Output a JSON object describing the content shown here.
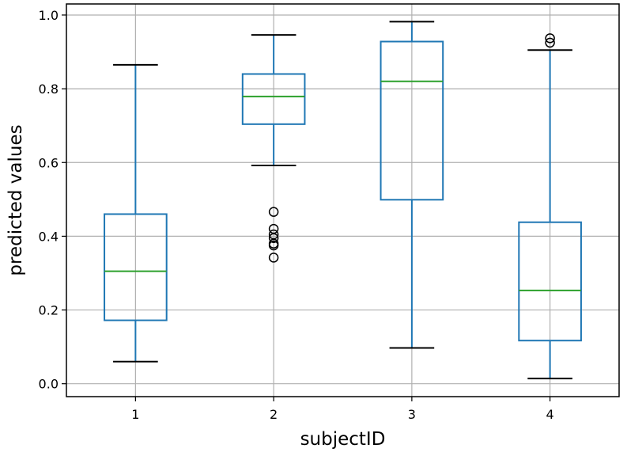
{
  "chart_data": {
    "type": "box",
    "xlabel": "subjectID",
    "ylabel": "predicted values",
    "ylim": [
      -0.035,
      1.03
    ],
    "y_ticks": [
      0.0,
      0.2,
      0.4,
      0.6,
      0.8,
      1.0
    ],
    "y_tick_labels": [
      "0.0",
      "0.2",
      "0.4",
      "0.6",
      "0.8",
      "1.0"
    ],
    "grid": true,
    "categories": [
      "1",
      "2",
      "3",
      "4"
    ],
    "boxes": [
      {
        "category": "1",
        "whisker_low": 0.06,
        "q1": 0.172,
        "median": 0.305,
        "q3": 0.46,
        "whisker_high": 0.865,
        "outliers": []
      },
      {
        "category": "2",
        "whisker_low": 0.592,
        "q1": 0.704,
        "median": 0.779,
        "q3": 0.84,
        "whisker_high": 0.946,
        "outliers": [
          0.466,
          0.42,
          0.405,
          0.395,
          0.38,
          0.375,
          0.342
        ]
      },
      {
        "category": "3",
        "whisker_low": 0.097,
        "q1": 0.499,
        "median": 0.82,
        "q3": 0.928,
        "whisker_high": 0.982,
        "outliers": []
      },
      {
        "category": "4",
        "whisker_low": 0.014,
        "q1": 0.117,
        "median": 0.253,
        "q3": 0.438,
        "whisker_high": 0.905,
        "outliers": [
          0.937,
          0.925
        ]
      }
    ],
    "colors": {
      "box": "#1f77b4",
      "median": "#2ca02c",
      "cap": "#000000",
      "grid": "#b0b0b0"
    }
  }
}
